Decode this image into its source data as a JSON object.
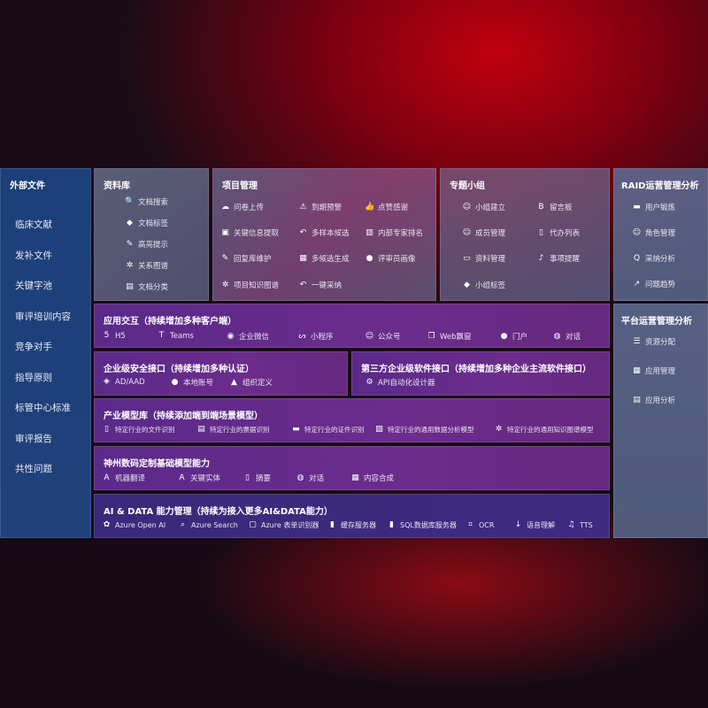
{
  "external": {
    "title": "外部文件",
    "items": [
      "临床文献",
      "发补文件",
      "关键字池",
      "审评培训内容",
      "竞争对手",
      "指导原则",
      "标管中心标准",
      "审评报告",
      "共性问题"
    ]
  },
  "library": {
    "title": "资料库",
    "items": [
      {
        "icon": "doc-search-icon",
        "label": "文档搜索"
      },
      {
        "icon": "tag-icon",
        "label": "文档标签"
      },
      {
        "icon": "pen-icon",
        "label": "高亮提示"
      },
      {
        "icon": "graph-icon",
        "label": "关系图谱"
      },
      {
        "icon": "doc-classify-icon",
        "label": "文档分类"
      }
    ]
  },
  "project": {
    "title": "项目管理",
    "items": [
      {
        "icon": "cloud-upload-icon",
        "label": "问卷上传"
      },
      {
        "icon": "alarm-icon",
        "label": "到期预警"
      },
      {
        "icon": "thumbs-up-icon",
        "label": "点赞感谢"
      },
      {
        "icon": "extract-icon",
        "label": "关键信息提取"
      },
      {
        "icon": "reply-icon",
        "label": "多样本候选"
      },
      {
        "icon": "ranking-icon",
        "label": "内部专家排名"
      },
      {
        "icon": "edit-icon",
        "label": "回复库维护"
      },
      {
        "icon": "puzzle-icon",
        "label": "多候选生成"
      },
      {
        "icon": "user-icon",
        "label": "评审员画像"
      },
      {
        "icon": "knowledge-graph-icon",
        "label": "项目知识图谱"
      },
      {
        "icon": "reply-icon",
        "label": "一键采纳"
      }
    ]
  },
  "group": {
    "title": "专题小组",
    "items": [
      {
        "icon": "group-icon",
        "label": "小组建立"
      },
      {
        "icon": "bbs-icon",
        "label": "留言板"
      },
      {
        "icon": "user-add-icon",
        "label": "成员管理"
      },
      {
        "icon": "clipboard-icon",
        "label": "代办列表"
      },
      {
        "icon": "folder-icon",
        "label": "资料管理"
      },
      {
        "icon": "bell-icon",
        "label": "事项提醒"
      },
      {
        "icon": "tag-icon",
        "label": "小组标签"
      }
    ]
  },
  "raid": {
    "title": "RAID运营管理分析",
    "items": [
      {
        "icon": "id-card-icon",
        "label": "用户锻炼"
      },
      {
        "icon": "users-icon",
        "label": "角色管理"
      },
      {
        "icon": "qa-icon",
        "label": "采纳分析"
      },
      {
        "icon": "trend-icon",
        "label": "问题趋势"
      }
    ]
  },
  "platform": {
    "title": "平台运营管理分析",
    "items": [
      {
        "icon": "list-icon",
        "label": "资源分配"
      },
      {
        "icon": "apps-icon",
        "label": "应用管理"
      },
      {
        "icon": "chart-icon",
        "label": "应用分析"
      }
    ]
  },
  "app": {
    "title": "应用交互（持续增加多种客户端）",
    "items": [
      {
        "icon": "html5-icon",
        "label": "H5"
      },
      {
        "icon": "teams-icon",
        "label": "Teams"
      },
      {
        "icon": "wechat-icon",
        "label": "企业微信"
      },
      {
        "icon": "miniprogram-icon",
        "label": "小程序"
      },
      {
        "icon": "users-icon",
        "label": "公众号"
      },
      {
        "icon": "window-icon",
        "label": "Web飘窗"
      },
      {
        "icon": "portal-icon",
        "label": "门户"
      },
      {
        "icon": "chat-icon",
        "label": "对话"
      }
    ]
  },
  "security": {
    "title": "企业级安全接口（持续增加多种认证）",
    "items": [
      {
        "icon": "ad-icon",
        "label": "AD/AAD"
      },
      {
        "icon": "user-icon",
        "label": "本地账号"
      },
      {
        "icon": "org-icon",
        "label": "组织定义"
      }
    ]
  },
  "thirdparty": {
    "title": "第三方企业级软件接口（持续增加多种企业主流软件接口）",
    "items": [
      {
        "icon": "gear-icon",
        "label": "API自动化设计器"
      }
    ]
  },
  "industry": {
    "title": "产业模型库（持续添加端到端场景模型）",
    "items": [
      {
        "icon": "file-icon",
        "label": "特定行业的文件识别"
      },
      {
        "icon": "receipt-icon",
        "label": "特定行业的票据识别"
      },
      {
        "icon": "id-card-icon",
        "label": "特定行业的证件识别"
      },
      {
        "icon": "analysis-icon",
        "label": "特定行业的通用数据分析模型"
      },
      {
        "icon": "knowledge-graph-icon",
        "label": "特定行业的通用知识图谱模型"
      }
    ]
  },
  "base": {
    "title": "神州数码定制基础模型能力",
    "items": [
      {
        "icon": "translate-icon",
        "label": "机器翻译"
      },
      {
        "icon": "entity-icon",
        "label": "关键实体"
      },
      {
        "icon": "summary-icon",
        "label": "摘要"
      },
      {
        "icon": "chat-icon",
        "label": "对话"
      },
      {
        "icon": "compose-icon",
        "label": "内容合成"
      }
    ]
  },
  "ai": {
    "title": "AI & DATA 能力管理（持续为接入更多AI&DATA能力）",
    "items": [
      {
        "icon": "openai-icon",
        "label": "Azure Open AI"
      },
      {
        "icon": "search-icon",
        "label": "Azure Search"
      },
      {
        "icon": "form-icon",
        "label": "Azure 表单识别器"
      },
      {
        "icon": "cache-icon",
        "label": "缓存服务器"
      },
      {
        "icon": "database-icon",
        "label": "SQL数据库服务器"
      },
      {
        "icon": "ocr-icon",
        "label": "OCR"
      },
      {
        "icon": "speech-icon",
        "label": "语音理解"
      },
      {
        "icon": "tts-icon",
        "label": "TTS"
      }
    ]
  }
}
